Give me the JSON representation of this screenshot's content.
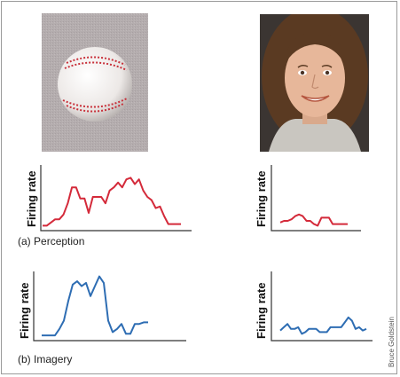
{
  "labels": {
    "firing_rate": "Firing rate",
    "caption_a_letter": "(a)",
    "caption_a_text": "Perception",
    "caption_b_letter": "(b)",
    "caption_b_text": "Imagery",
    "credit": "Bruce Goldstein"
  },
  "images": [
    {
      "name": "baseball-photo",
      "subject": "baseball"
    },
    {
      "name": "face-photo",
      "subject": "smiling woman with brown hair"
    }
  ],
  "colors": {
    "perception_line": "#d42a3a",
    "imagery_line": "#2e6db3",
    "axis": "#333333"
  },
  "chart_data": [
    {
      "type": "line",
      "name": "perception-baseball",
      "xlabel": "",
      "ylabel": "Firing rate",
      "x": [
        0,
        1,
        2,
        3,
        4,
        5,
        6,
        7,
        8,
        9,
        10,
        11,
        12,
        13,
        14,
        15,
        16,
        17,
        18,
        19,
        20,
        21,
        22,
        23,
        24,
        25,
        26,
        27,
        28,
        29,
        30,
        31,
        32,
        33
      ],
      "values": [
        2,
        2,
        4,
        6,
        6,
        9,
        16,
        26,
        26,
        19,
        19,
        10,
        20,
        20,
        20,
        16,
        24,
        26,
        29,
        26,
        31,
        32,
        28,
        31,
        24,
        20,
        18,
        13,
        14,
        8,
        3,
        3,
        3,
        3
      ],
      "ylim": [
        0,
        40
      ]
    },
    {
      "type": "line",
      "name": "perception-face",
      "xlabel": "",
      "ylabel": "Firing rate",
      "x": [
        0,
        1,
        2,
        3,
        4,
        5,
        6,
        7,
        8,
        9,
        10,
        11,
        12,
        13,
        14,
        15,
        16,
        17,
        18
      ],
      "values": [
        4,
        5,
        5,
        6,
        8,
        9,
        8,
        5,
        5,
        3,
        2,
        7,
        7,
        7,
        3,
        3,
        3,
        3,
        3
      ],
      "ylim": [
        0,
        40
      ]
    },
    {
      "type": "line",
      "name": "imagery-baseball",
      "xlabel": "",
      "ylabel": "Firing rate",
      "x": [
        0,
        1,
        2,
        3,
        4,
        5,
        6,
        7,
        8,
        9,
        10,
        11,
        12,
        13,
        14,
        15,
        16,
        17,
        18,
        19,
        20,
        21,
        22,
        23,
        24
      ],
      "values": [
        1,
        1,
        1,
        1,
        5,
        10,
        22,
        32,
        34,
        31,
        33,
        25,
        31,
        37,
        33,
        10,
        3,
        5,
        8,
        2,
        2,
        8,
        8,
        9,
        9
      ],
      "ylim": [
        0,
        40
      ]
    },
    {
      "type": "line",
      "name": "imagery-face",
      "xlabel": "",
      "ylabel": "Firing rate",
      "x": [
        0,
        1,
        2,
        3,
        4,
        5,
        6,
        7,
        8,
        9,
        10,
        11,
        12,
        13,
        14,
        15,
        16,
        17,
        18,
        19,
        20,
        21,
        22,
        23,
        24
      ],
      "values": [
        4,
        6,
        8,
        5,
        5,
        6,
        2,
        3,
        5,
        5,
        5,
        3,
        3,
        3,
        6,
        6,
        6,
        6,
        9,
        12,
        10,
        5,
        6,
        4,
        5
      ],
      "ylim": [
        0,
        40
      ]
    }
  ]
}
